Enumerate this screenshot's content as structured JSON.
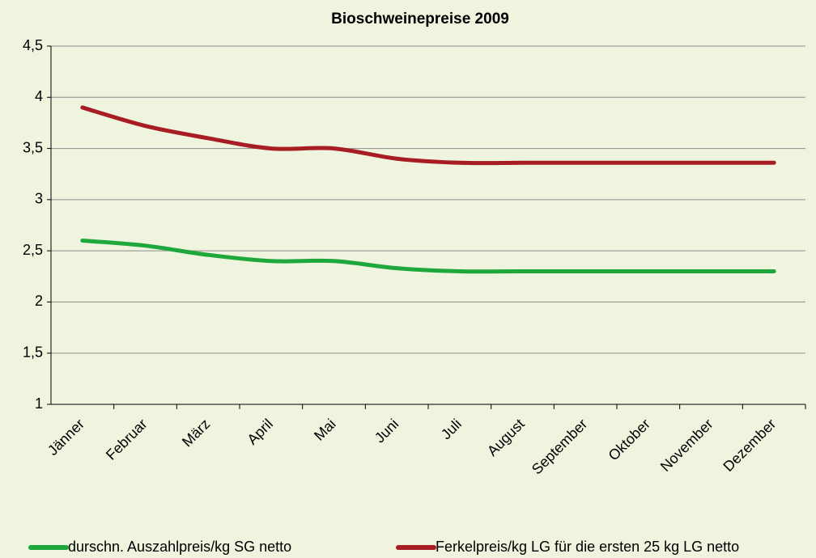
{
  "chart_data": {
    "type": "line",
    "title": "Bioschweinepreise 2009",
    "categories": [
      "Jänner",
      "Februar",
      "März",
      "April",
      "Mai",
      "Juni",
      "Juli",
      "August",
      "September",
      "Oktober",
      "November",
      "Dezember"
    ],
    "series": [
      {
        "name": "durschn. Auszahlpreis/kg SG netto",
        "color": "#1ea83c",
        "values": [
          2.6,
          2.55,
          2.46,
          2.4,
          2.4,
          2.33,
          2.3,
          2.3,
          2.3,
          2.3,
          2.3,
          2.3
        ]
      },
      {
        "name": "Ferkelpreis/kg LG für die ersten 25 kg LG netto",
        "color": "#a81c24",
        "values": [
          3.9,
          3.72,
          3.6,
          3.5,
          3.5,
          3.4,
          3.36,
          3.36,
          3.36,
          3.36,
          3.36,
          3.36
        ]
      }
    ],
    "ylim": [
      1,
      4.5
    ],
    "yticks": [
      1,
      {
        "value": 1.5,
        "label": "1,5"
      },
      2,
      {
        "value": 2.5,
        "label": "2,5"
      },
      3,
      {
        "value": 3.5,
        "label": "3,5"
      },
      4,
      {
        "value": 4.5,
        "label": "4,5"
      }
    ],
    "grid": true,
    "legend": "bottom"
  }
}
